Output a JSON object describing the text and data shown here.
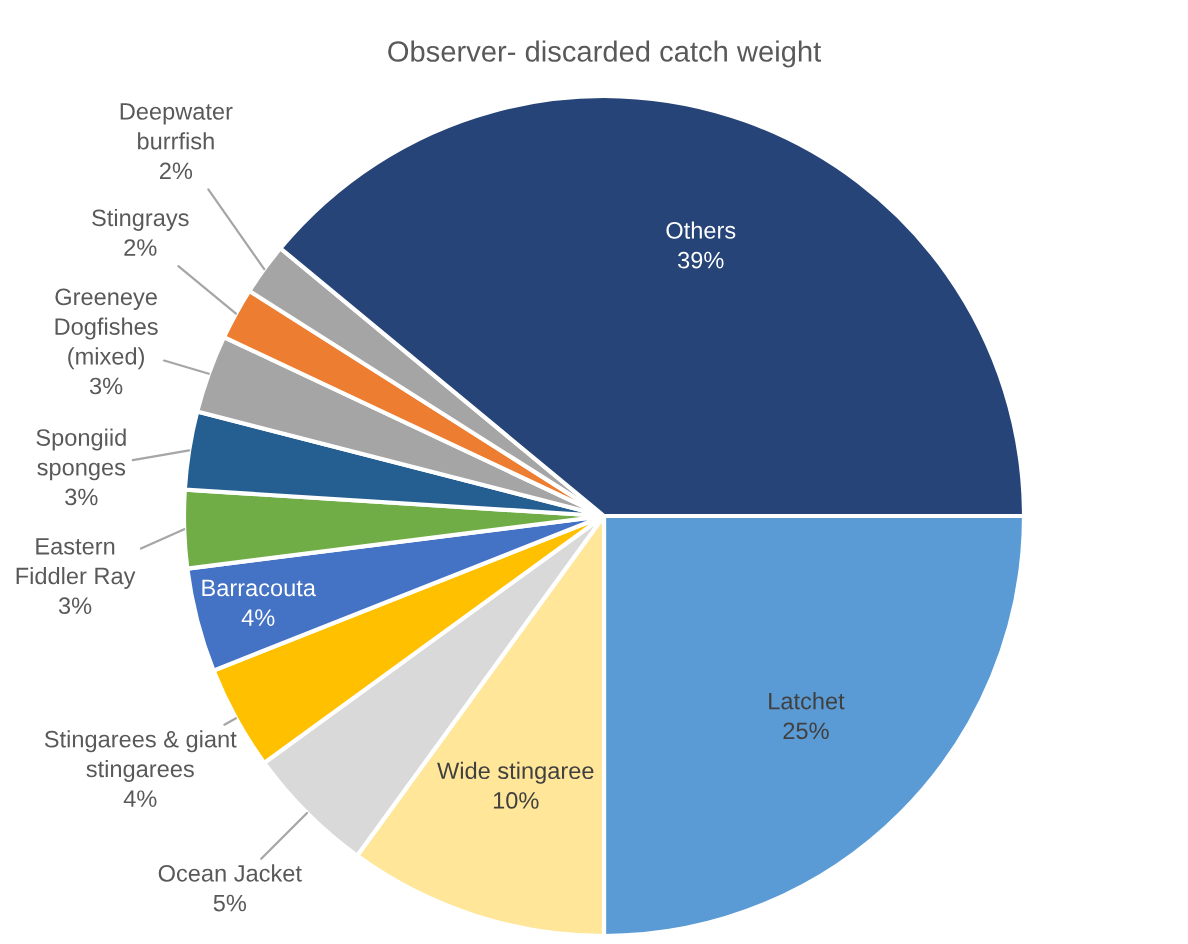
{
  "chart_data": {
    "type": "pie",
    "title": "Observer- discarded catch weight",
    "categories": [
      "Latchet",
      "Wide stingaree",
      "Ocean Jacket",
      "Stingarees & giant\nstingarees",
      "Barracouta",
      "Eastern\nFiddler Ray",
      "Spongiid\nsponges",
      "Greeneye\nDogfishes\n(mixed)",
      "Stingrays",
      "Deepwater\nburrfish",
      "Others"
    ],
    "values": [
      25,
      10,
      5,
      4,
      4,
      3,
      3,
      3,
      2,
      2,
      39
    ],
    "value_labels": [
      "25%",
      "10%",
      "5%",
      "4%",
      "4%",
      "3%",
      "3%",
      "3%",
      "2%",
      "2%",
      "39%"
    ],
    "colors": [
      "#5b9bd5",
      "#ffe699",
      "#d9d9d9",
      "#ffc000",
      "#4472c4",
      "#70ad47",
      "#255e91",
      "#a5a5a5",
      "#ed7d31",
      "#a5a5a5",
      "#264478"
    ]
  }
}
